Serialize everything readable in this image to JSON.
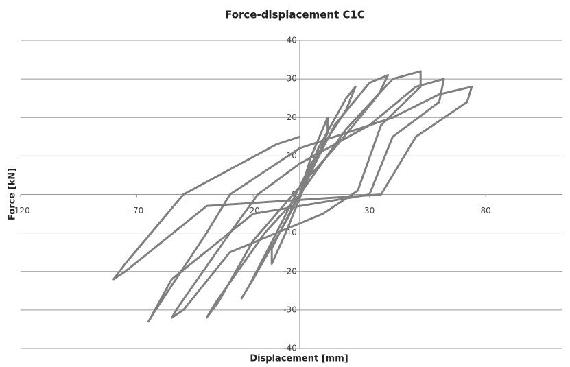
{
  "chart_data": {
    "type": "line",
    "title": "Force-displacement C1C",
    "x_label": "Displacement [mm]",
    "y_label": "Force [kN]",
    "xlim": [
      -120,
      113
    ],
    "ylim": [
      -40,
      40
    ],
    "xticks": [
      -120,
      -70,
      -20,
      30,
      80
    ],
    "yticks": [
      -40,
      -30,
      -20,
      -10,
      0,
      10,
      20,
      30,
      40
    ],
    "grid": true,
    "color": "#808080",
    "x": [
      0,
      5,
      12,
      12,
      2,
      -6,
      -12,
      -12,
      -2,
      0,
      8,
      20,
      24,
      20,
      5,
      -10,
      -22,
      -25,
      -20,
      -5,
      0,
      15,
      30,
      38,
      34,
      15,
      0,
      -20,
      -35,
      -40,
      -36,
      -15,
      0,
      20,
      40,
      52,
      52,
      35,
      25,
      10,
      -30,
      -50,
      -55,
      -52,
      -30,
      -18,
      0,
      30,
      50,
      62,
      60,
      40,
      30,
      -20,
      -55,
      -65,
      -62,
      -40,
      -30,
      0,
      40,
      60,
      74,
      72,
      50,
      35,
      -40,
      -75,
      -80,
      -75,
      -50,
      -10,
      0
    ],
    "values": [
      0,
      10,
      20,
      16,
      2,
      -10,
      -18,
      -14,
      -2,
      0,
      12,
      25,
      28,
      22,
      8,
      -10,
      -24,
      -27,
      -22,
      -6,
      0,
      18,
      29,
      31,
      26,
      12,
      2,
      -12,
      -28,
      -32,
      -28,
      -10,
      0,
      17,
      30,
      32,
      28,
      18,
      1,
      -5,
      -15,
      -30,
      -32,
      -29,
      -10,
      0,
      8,
      18,
      28,
      30,
      24,
      15,
      0,
      -5,
      -22,
      -33,
      -30,
      -10,
      0,
      12,
      20,
      26,
      28,
      24,
      15,
      0,
      -3,
      -20,
      -22,
      -18,
      0,
      13,
      15
    ]
  }
}
